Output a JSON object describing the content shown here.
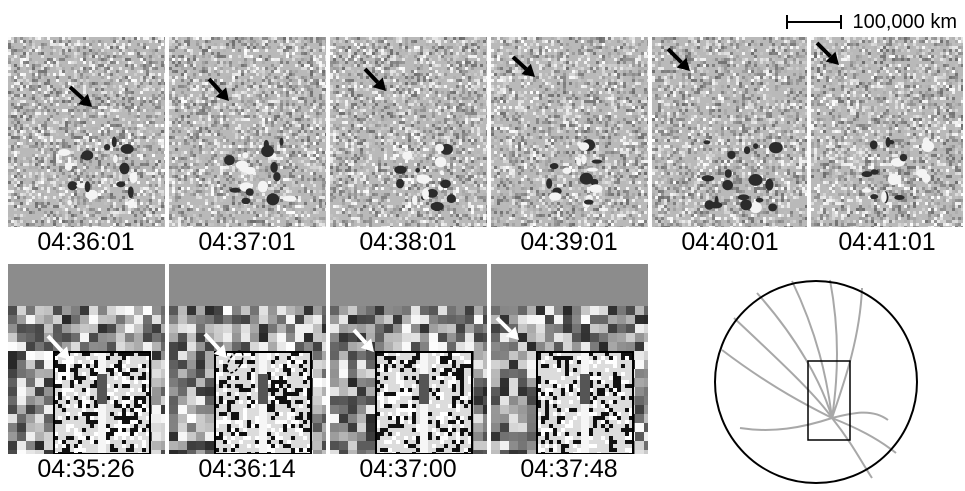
{
  "scale_bar": {
    "label": "100,000 km"
  },
  "top_row": [
    {
      "time": "04:36:01"
    },
    {
      "time": "04:37:01"
    },
    {
      "time": "04:38:01"
    },
    {
      "time": "04:39:01"
    },
    {
      "time": "04:40:01"
    },
    {
      "time": "04:41:01"
    }
  ],
  "bottom_row": [
    {
      "time": "04:35:26"
    },
    {
      "time": "04:36:14"
    },
    {
      "time": "04:37:00"
    },
    {
      "time": "04:37:48"
    }
  ],
  "colors": {
    "arrow_top": "#000000",
    "arrow_bottom": "#ffffff",
    "field_lines": "#a8a8a8"
  }
}
